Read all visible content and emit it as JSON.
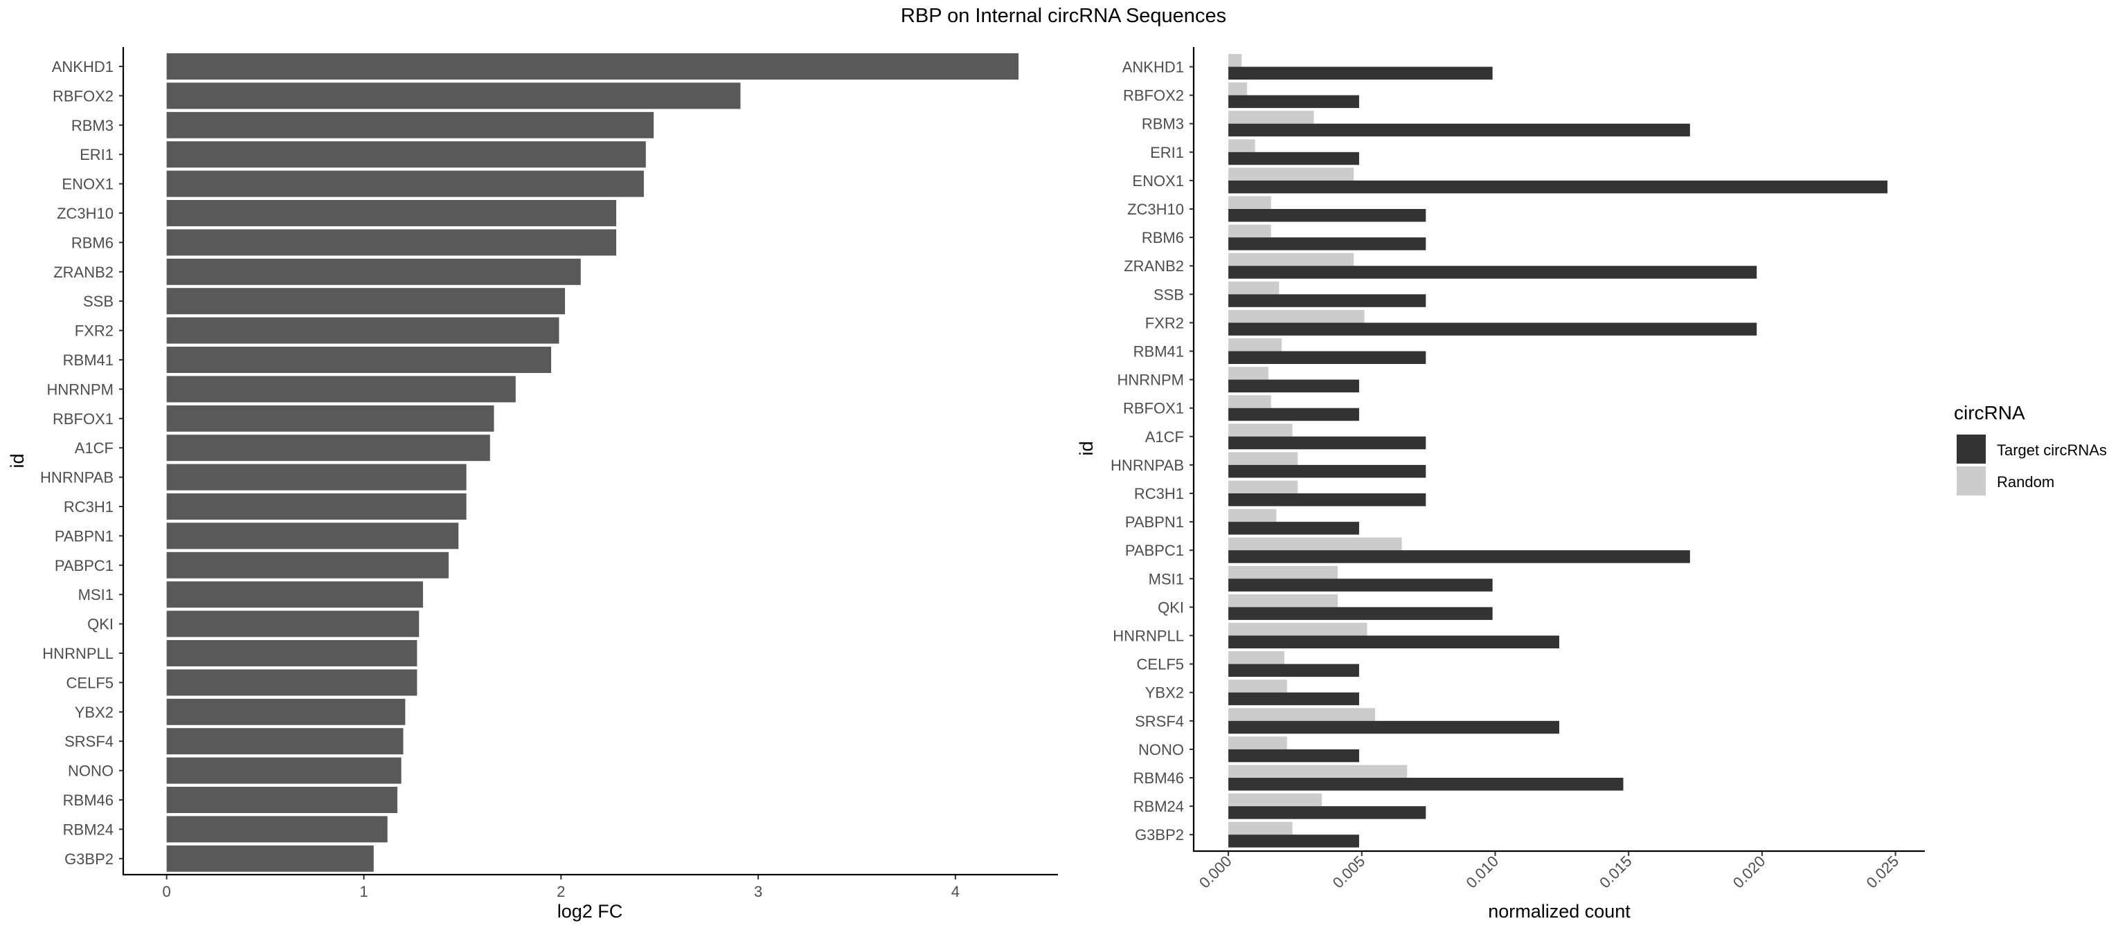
{
  "title": "RBP on Internal circRNA Sequences",
  "colors": {
    "bar_fc": "#595959",
    "target": "#333333",
    "random": "#cccccc",
    "axis": "#000000",
    "tick_label": "#4d4d4d"
  },
  "chart_data": [
    {
      "type": "bar",
      "orientation": "horizontal",
      "xlabel": "log2 FC",
      "ylabel": "id",
      "xlim": [
        -0.22,
        4.52
      ],
      "xticks": [
        0,
        1,
        2,
        3,
        4
      ],
      "xtick_labels": [
        "0",
        "1",
        "2",
        "3",
        "4"
      ],
      "grid": false,
      "categories": [
        "ANKHD1",
        "RBFOX2",
        "RBM3",
        "ERI1",
        "ENOX1",
        "ZC3H10",
        "RBM6",
        "ZRANB2",
        "SSB",
        "FXR2",
        "RBM41",
        "HNRNPM",
        "RBFOX1",
        "A1CF",
        "HNRNPAB",
        "RC3H1",
        "PABPN1",
        "PABPC1",
        "MSI1",
        "QKI",
        "HNRNPLL",
        "CELF5",
        "YBX2",
        "SRSF4",
        "NONO",
        "RBM46",
        "RBM24",
        "G3BP2"
      ],
      "values": [
        4.32,
        2.91,
        2.47,
        2.43,
        2.42,
        2.28,
        2.28,
        2.1,
        2.02,
        1.99,
        1.95,
        1.77,
        1.66,
        1.64,
        1.52,
        1.52,
        1.48,
        1.43,
        1.3,
        1.28,
        1.27,
        1.27,
        1.21,
        1.2,
        1.19,
        1.17,
        1.12,
        1.05
      ]
    },
    {
      "type": "bar",
      "orientation": "horizontal",
      "xlabel": "normalized count",
      "ylabel": "id",
      "xlim": [
        -0.0013,
        0.0261
      ],
      "xticks": [
        0,
        0.005,
        0.01,
        0.015,
        0.02,
        0.025
      ],
      "xtick_labels": [
        "0.000",
        "0.005",
        "0.010",
        "0.015",
        "0.020",
        "0.025"
      ],
      "grid": false,
      "legend_title": "circRNA",
      "legend_position": "right",
      "categories": [
        "ANKHD1",
        "RBFOX2",
        "RBM3",
        "ERI1",
        "ENOX1",
        "ZC3H10",
        "RBM6",
        "ZRANB2",
        "SSB",
        "FXR2",
        "RBM41",
        "HNRNPM",
        "RBFOX1",
        "A1CF",
        "HNRNPAB",
        "RC3H1",
        "PABPN1",
        "PABPC1",
        "MSI1",
        "QKI",
        "HNRNPLL",
        "CELF5",
        "YBX2",
        "SRSF4",
        "NONO",
        "RBM46",
        "RBM24",
        "G3BP2"
      ],
      "series": [
        {
          "name": "Target circRNAs",
          "values": [
            0.0099,
            0.0049,
            0.0173,
            0.0049,
            0.0247,
            0.0074,
            0.0074,
            0.0198,
            0.0074,
            0.0198,
            0.0074,
            0.0049,
            0.0049,
            0.0074,
            0.0074,
            0.0074,
            0.0049,
            0.0173,
            0.0099,
            0.0099,
            0.0124,
            0.0049,
            0.0049,
            0.0124,
            0.0049,
            0.0148,
            0.0074,
            0.0049
          ]
        },
        {
          "name": "Random",
          "values": [
            0.0005,
            0.0007,
            0.0032,
            0.001,
            0.0047,
            0.0016,
            0.0016,
            0.0047,
            0.0019,
            0.0051,
            0.002,
            0.0015,
            0.0016,
            0.0024,
            0.0026,
            0.0026,
            0.0018,
            0.0065,
            0.0041,
            0.0041,
            0.0052,
            0.0021,
            0.0022,
            0.0055,
            0.0022,
            0.0067,
            0.0035,
            0.0024
          ]
        }
      ]
    }
  ]
}
